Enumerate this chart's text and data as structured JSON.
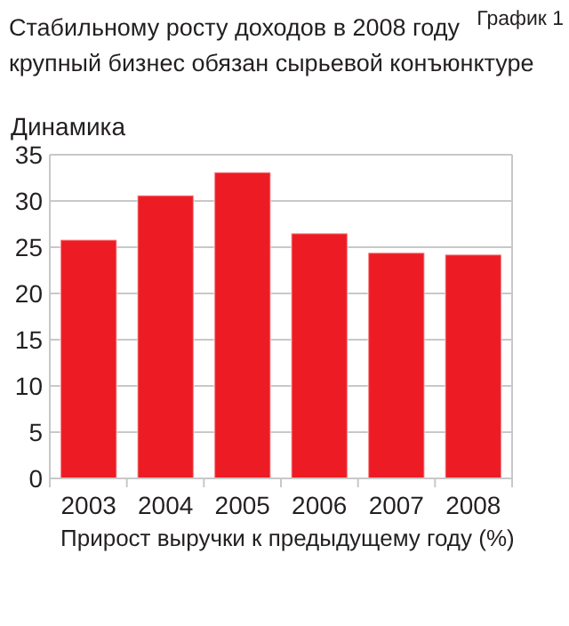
{
  "chart_data": {
    "type": "bar",
    "title": "Стабильному росту доходов в 2008 году крупный бизнес обязан сырьевой конъюнктуре",
    "subtitle": "График 1",
    "ylabel": "Динамика",
    "xlabel": "Прирост выручки к предыдущему  году (%)",
    "categories": [
      "2003",
      "2004",
      "2005",
      "2006",
      "2007",
      "2008"
    ],
    "values": [
      25.8,
      30.6,
      33.1,
      26.5,
      24.4,
      24.2
    ],
    "color": "#ed1c24",
    "ylim": [
      0,
      35
    ],
    "yticks": [
      0,
      5,
      10,
      15,
      20,
      25,
      30,
      35
    ],
    "grid": "y"
  }
}
